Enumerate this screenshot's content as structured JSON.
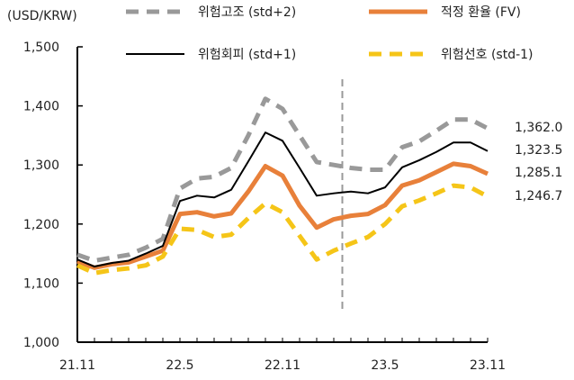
{
  "chart_data": {
    "type": "line",
    "unit_label": "(USD/KRW)",
    "ylim": [
      1000,
      1500
    ],
    "yticks": [
      1000,
      1100,
      1200,
      1300,
      1400,
      1500
    ],
    "ytick_labels": [
      "1,000",
      "1,100",
      "1,200",
      "1,300",
      "1,400",
      "1,500"
    ],
    "x": [
      "21.11",
      "21.12",
      "22.1",
      "22.2",
      "22.3",
      "22.4",
      "22.5",
      "22.6",
      "22.7",
      "22.8",
      "22.9",
      "22.10",
      "22.11",
      "22.12",
      "23.1",
      "23.2",
      "23.3",
      "23.4",
      "23.5",
      "23.6",
      "23.7",
      "23.8",
      "23.9",
      "23.10",
      "23.11"
    ],
    "xtick_labels": [
      "21.11",
      "22.5",
      "22.11",
      "23.5",
      "23.11"
    ],
    "xtick_positions": [
      "21.11",
      "22.5",
      "22.11",
      "23.5",
      "23.11"
    ],
    "grid": false,
    "legend_placement": "top",
    "vertical_marker_between": [
      "23.2",
      "23.3"
    ],
    "series": [
      {
        "name": "위험고조 (std+2)",
        "color": "#999999",
        "style": "dashed",
        "end_label": "1,362.0",
        "values": [
          1148,
          1138,
          1143,
          1148,
          1160,
          1175,
          1260,
          1277,
          1280,
          1295,
          1350,
          1412,
          1395,
          1350,
          1305,
          1300,
          1295,
          1292,
          1292,
          1330,
          1340,
          1358,
          1377,
          1377,
          1362.0
        ]
      },
      {
        "name": "위험회피 (std+1)",
        "color": "#000000",
        "style": "solid-thin",
        "end_label": "1,323.5",
        "values": [
          1140,
          1128,
          1134,
          1138,
          1150,
          1163,
          1239,
          1248,
          1245,
          1258,
          1306,
          1355,
          1341,
          1295,
          1248,
          1252,
          1255,
          1252,
          1262,
          1296,
          1308,
          1322,
          1338,
          1338,
          1323.5
        ]
      },
      {
        "name": "적정 환율 (FV)",
        "color": "#E8803A",
        "style": "solid-thick",
        "end_label": "1,285.1",
        "values": [
          1137,
          1126,
          1132,
          1135,
          1145,
          1155,
          1217,
          1220,
          1213,
          1218,
          1255,
          1298,
          1282,
          1231,
          1194,
          1208,
          1214,
          1217,
          1232,
          1265,
          1274,
          1288,
          1302,
          1298,
          1285.1
        ]
      },
      {
        "name": "위험선호 (std-1)",
        "color": "#F5C518",
        "style": "dashed",
        "end_label": "1,246.7",
        "values": [
          1130,
          1117,
          1122,
          1125,
          1130,
          1145,
          1192,
          1190,
          1178,
          1182,
          1210,
          1235,
          1220,
          1180,
          1140,
          1155,
          1167,
          1178,
          1200,
          1230,
          1240,
          1252,
          1265,
          1262,
          1246.7
        ]
      }
    ]
  }
}
